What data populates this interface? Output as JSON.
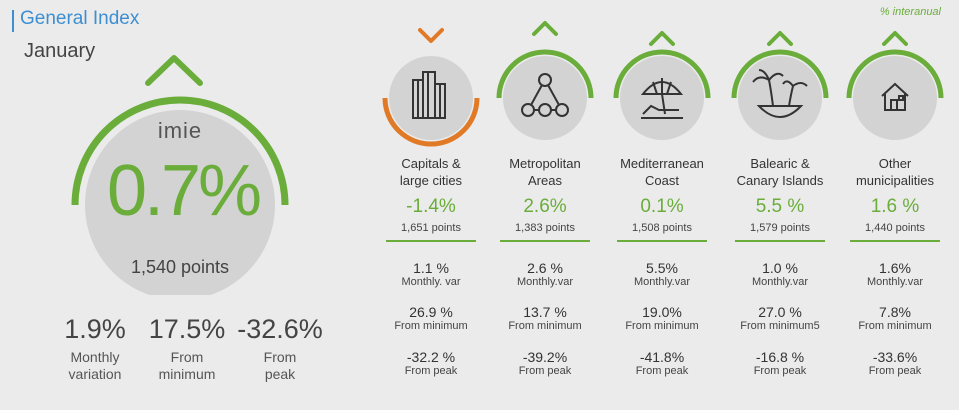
{
  "header": {
    "title": "General Index",
    "subtitle": "January",
    "note": "% interanual"
  },
  "main": {
    "logo": "imie",
    "value": "0.7%",
    "points": "1,540 points",
    "trend": "up",
    "stats": [
      {
        "value": "1.9%",
        "label_line1": "Monthly",
        "label_line2": "variation"
      },
      {
        "value": "17.5%",
        "label_line1": "From",
        "label_line2": "minimum"
      },
      {
        "value": "-32.6%",
        "label_line1": "From",
        "label_line2": "peak"
      }
    ]
  },
  "categories": [
    {
      "icon": "buildings-icon",
      "trend": "down",
      "color": "#e07a27",
      "name_line1": "Capitals &",
      "name_line2": "large cities",
      "value": "-1.4%",
      "points": "1,651 points",
      "monthly": "1.1 %",
      "monthly_label": "Monthly. var",
      "from_min": "26.9 %",
      "from_min_label": "From minimum",
      "from_peak": "-32.2 %",
      "from_peak_label": "From peak"
    },
    {
      "icon": "network-icon",
      "trend": "up",
      "color": "#6aad3a",
      "name_line1": "Metropolitan",
      "name_line2": "Areas",
      "value": "2.6%",
      "points": "1,383 points",
      "monthly": "2.6 %",
      "monthly_label": "Monthly.var",
      "from_min": "13.7 %",
      "from_min_label": "From minimum",
      "from_peak": "-39.2%",
      "from_peak_label": "From peak"
    },
    {
      "icon": "beach-umbrella-icon",
      "trend": "up",
      "color": "#6aad3a",
      "name_line1": "Mediterranean",
      "name_line2": "Coast",
      "value": "0.1%",
      "points": "1,508 points",
      "monthly": "5.5%",
      "monthly_label": "Monthly.var",
      "from_min": "19.0%",
      "from_min_label": "From minimum",
      "from_peak": "-41.8%",
      "from_peak_label": "From peak"
    },
    {
      "icon": "palm-island-icon",
      "trend": "up",
      "color": "#6aad3a",
      "name_line1": "Balearic &",
      "name_line2": "Canary Islands",
      "value": "5.5 %",
      "points": "1,579 points",
      "monthly": "1.0 %",
      "monthly_label": "Monthly.var",
      "from_min": "27.0 %",
      "from_min_label": "From minimum5",
      "from_peak": "-16.8 %",
      "from_peak_label": "From peak"
    },
    {
      "icon": "house-icon",
      "trend": "up",
      "color": "#6aad3a",
      "name_line1": "Other",
      "name_line2": "municipalities",
      "value": "1.6 %",
      "points": "1,440 points",
      "monthly": "1.6%",
      "monthly_label": "Monthly.var",
      "from_min": "7.8%",
      "from_min_label": "From minimum",
      "from_peak": "-33.6%",
      "from_peak_label": "From peak"
    }
  ]
}
